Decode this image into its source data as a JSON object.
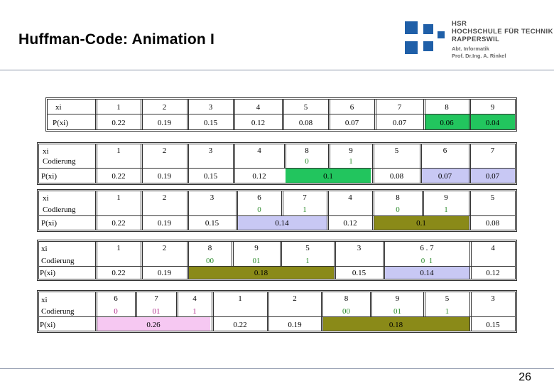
{
  "title": "Huffman-Code: Animation I",
  "logo": {
    "line1": "HSR",
    "line2": "HOCHSCHULE FÜR TECHNIK",
    "line3": "RAPPERSWIL",
    "line4": "Abt. Informatik",
    "line5": "Prof. Dr.Ing. A. Rinkel"
  },
  "page_number": "26",
  "colors": {
    "green_bright": "#22c55e",
    "lavender": "#c8c8f4",
    "olive": "#8a8a18",
    "pink": "#f6c8f2",
    "brand_blue": "#1f5fa8"
  },
  "table1": {
    "label_x": "xi",
    "label_p": "P(xi)",
    "x": [
      "1",
      "2",
      "3",
      "4",
      "5",
      "6",
      "7",
      "8",
      "9"
    ],
    "p": [
      "0.22",
      "0.19",
      "0.15",
      "0.12",
      "0.08",
      "0.07",
      "0.07",
      "0.06",
      "0.04"
    ]
  },
  "table2": {
    "label_x": "xi",
    "label_c": "Codierung",
    "label_p": "P(xi)",
    "x": [
      "1",
      "2",
      "3",
      "4",
      "8",
      "9",
      "5",
      "6",
      "7"
    ],
    "c": [
      "",
      "",
      "",
      "",
      "0",
      "1",
      "",
      "",
      ""
    ],
    "p": [
      "0.22",
      "0.19",
      "0.15",
      "0.12",
      "0.1",
      "0.08",
      "0.07",
      "0.07"
    ]
  },
  "table3": {
    "label_x": "xi",
    "label_c": "Codierung",
    "label_p": "P(xi)",
    "x": [
      "1",
      "2",
      "3",
      "6",
      "7",
      "4",
      "8",
      "9",
      "5"
    ],
    "c": [
      "",
      "",
      "",
      "0",
      "1",
      "",
      "0",
      "1",
      ""
    ],
    "p": [
      "0.22",
      "0.19",
      "0.15",
      "0.14",
      "0.12",
      "0.1",
      "0.08"
    ]
  },
  "table4": {
    "label_x": "xi",
    "label_c": "Codierung",
    "label_p": "P(xi)",
    "x": [
      "1",
      "2",
      "8",
      "9",
      "5",
      "3",
      "6 . 7",
      "4"
    ],
    "c": [
      "",
      "",
      "00",
      "01",
      "1",
      "",
      "0  1",
      ""
    ],
    "p": [
      "0.22",
      "0.19",
      "0.18",
      "0.15",
      "0.14",
      "0.12"
    ]
  },
  "table5": {
    "label_x": "xi",
    "label_c": "Codierung",
    "label_p": "P(xi)",
    "x": [
      "6",
      "7",
      "4",
      "1",
      "2",
      "8",
      "9",
      "5",
      "3"
    ],
    "c": [
      "0",
      "01",
      "1",
      "",
      "",
      "00",
      "01",
      "1",
      ""
    ],
    "p": [
      "0.26",
      "0.22",
      "0.19",
      "0.18",
      "0.15"
    ]
  }
}
